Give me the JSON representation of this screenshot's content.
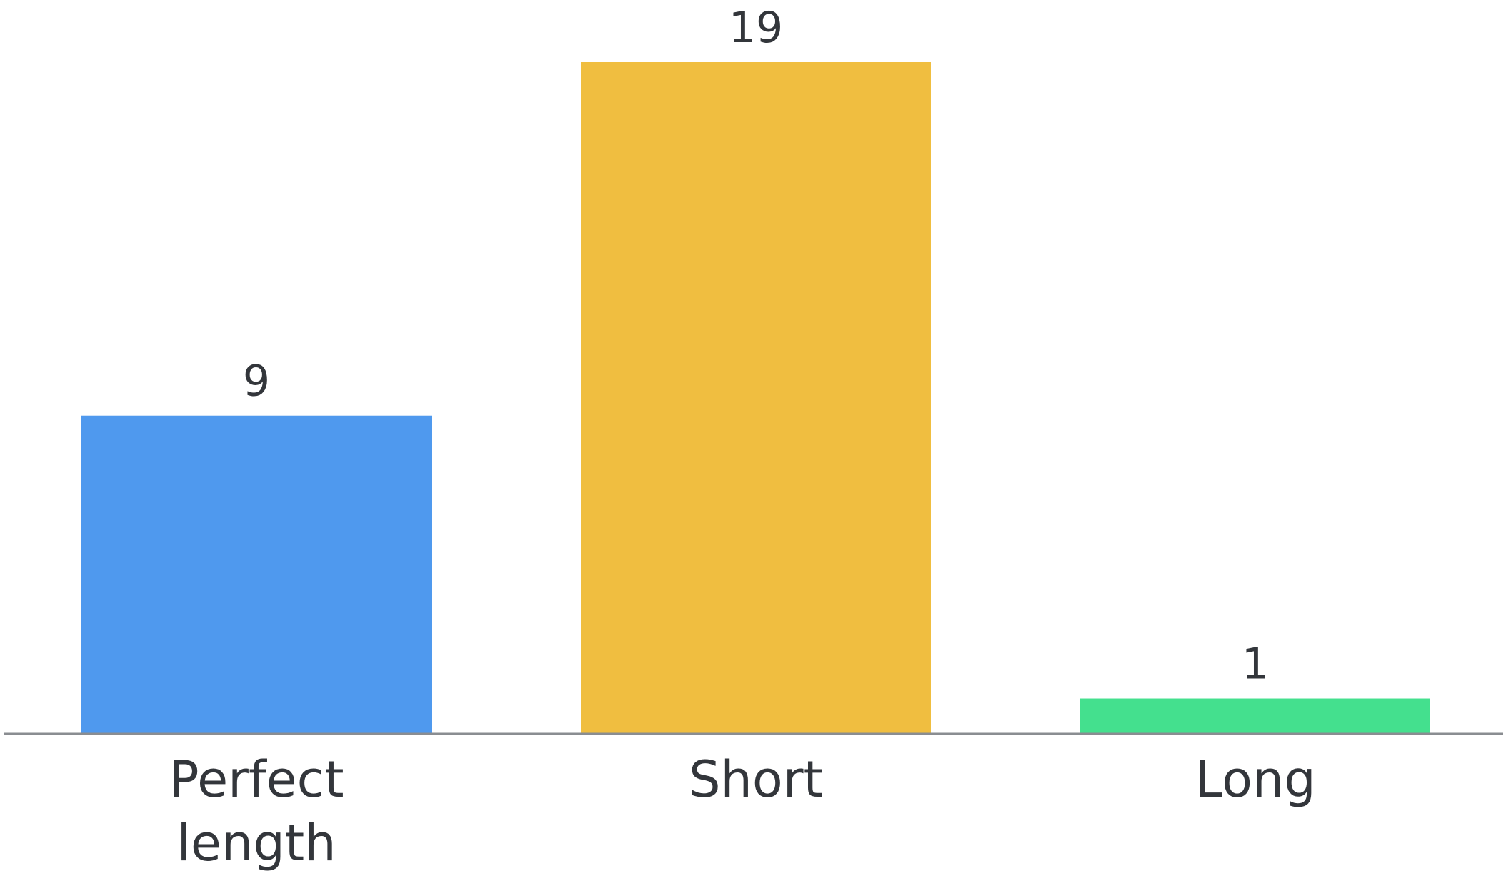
{
  "chart_data": {
    "type": "bar",
    "title": "",
    "xlabel": "",
    "ylabel": "",
    "categories": [
      [
        "Perfect",
        "length"
      ],
      [
        "Short"
      ],
      [
        "Long"
      ]
    ],
    "values": [
      9,
      19,
      1
    ],
    "data_labels": [
      "9",
      "19",
      "1"
    ],
    "bar_colors": [
      "#4F99EE",
      "#F0BE40",
      "#44E08E"
    ],
    "axis_color": "#8a8d91",
    "text_color": "#33363b",
    "ylim": [
      0,
      19
    ],
    "grid": false,
    "legend": "none"
  }
}
